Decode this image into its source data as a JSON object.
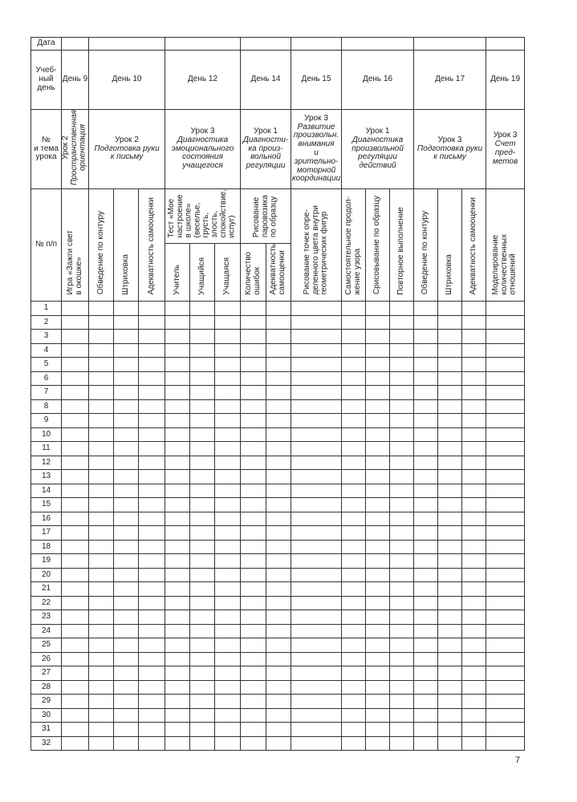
{
  "header": {
    "date_label": "Дата",
    "day_label": "Учеб-\nный\nдень",
    "lesson_label": "№\nи тема\nурока",
    "number_label": "№ п/п"
  },
  "days": [
    "День 9",
    "День 10",
    "День 12",
    "День 14",
    "День 15",
    "День 16",
    "День 17",
    "День 19"
  ],
  "lessons": [
    {
      "num": "Урок 2",
      "topic": "Пространственная\nориентация"
    },
    {
      "num": "Урок 2",
      "topic": "Подготовка руки\nк письму"
    },
    {
      "num": "Урок 3",
      "topic": "Диагностика\nэмоционального\nсостояния\nучащегося"
    },
    {
      "num": "Урок 1",
      "topic": "Диагности-\nка произ-\nвольной\nрегуляции"
    },
    {
      "num": "Урок 3",
      "topic": "Развитие\nпроизвольн.\nвнимания\nи зрительно-\nмоторной\nкоординации"
    },
    {
      "num": "Урок 1",
      "topic": "Диагностика\nпроизвольной\nрегуляции\nдействий"
    },
    {
      "num": "Урок 3",
      "topic": "Подготовка руки\nк письму"
    },
    {
      "num": "Урок 3",
      "topic": "Счет\nпред-\nметов"
    }
  ],
  "activities": {
    "day9": "Игра «Зажги свет\nв окошке»",
    "day10": [
      "Обведение по контуру",
      "Штриховка",
      "Адекватность самооценки"
    ],
    "day12_group": "Тест «Мое\nнастроение\nв школе»\n(веселье,\nгрусть,\nзлость,\nспокойствие,\nиспуг)",
    "day12_sub": [
      "Учитель",
      "Учащийся",
      "Учащаяся"
    ],
    "day14_group": "Рисование\nпаровозика\nпо образцу",
    "day14_sub": [
      "Количество\nошибок",
      "Адекватность\nсамооценки"
    ],
    "day15": "Рисование точек опре-\nделенного цвета внутри\nгеометрических фигур",
    "day16": [
      "Самостоятельное продол-\nжение узора",
      "Срисовывание по образцу",
      "Повторное выполнение"
    ],
    "day17": [
      "Обведение по контуру",
      "Штриховка",
      "Адекватность самооценки"
    ],
    "day19": "Моделирование\nколичественных\nотношений"
  },
  "rows": [
    "1",
    "2",
    "3",
    "4",
    "5",
    "6",
    "7",
    "8",
    "9",
    "10",
    "11",
    "12",
    "13",
    "14",
    "15",
    "16",
    "17",
    "18",
    "19",
    "20",
    "21",
    "22",
    "23",
    "24",
    "25",
    "26",
    "27",
    "28",
    "29",
    "30",
    "31",
    "32"
  ],
  "page_number": "7"
}
